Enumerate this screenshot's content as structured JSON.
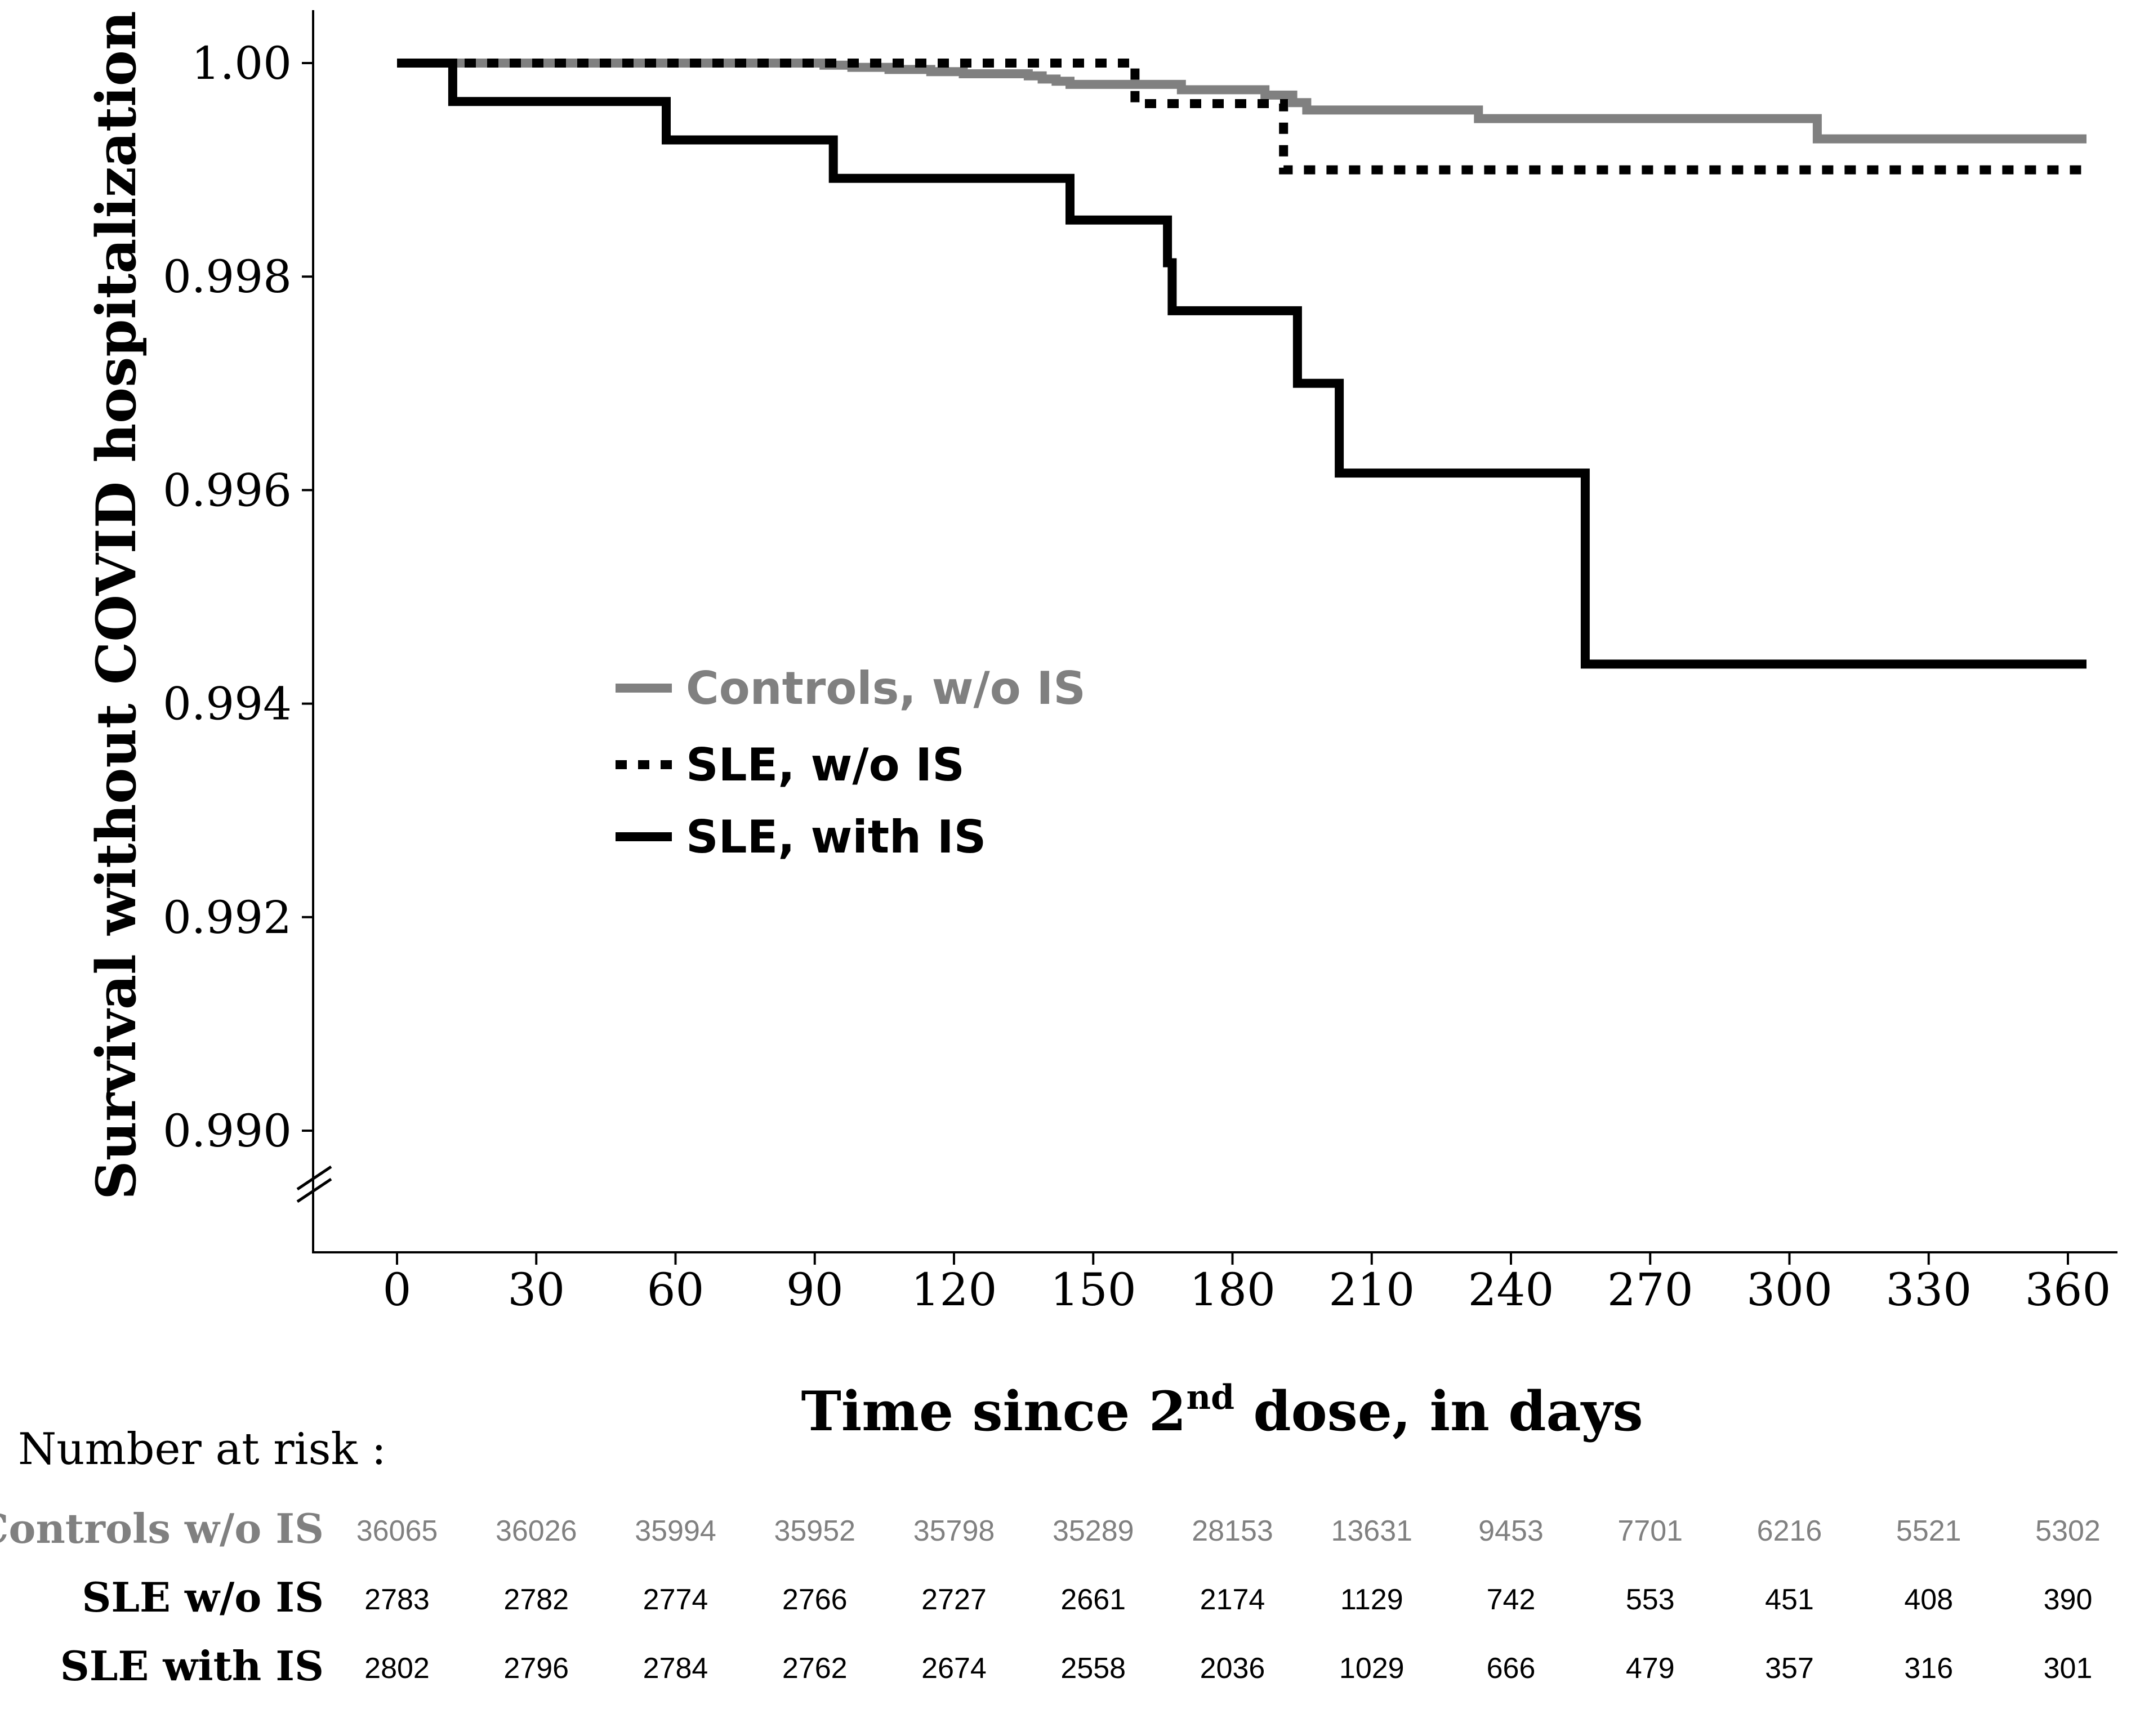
{
  "chart_data": {
    "type": "line",
    "subtype": "kaplan-meier step curves",
    "title": "",
    "xlabel_main": "Time since 2",
    "xlabel_sup": "nd",
    "xlabel_tail": " dose, in days",
    "ylabel": "Survival without COVID hospitalization",
    "xlim": [
      -15,
      380
    ],
    "ylim": [
      0.98885,
      1.0005
    ],
    "y_axis_break_below": 0.99,
    "x_ticks": [
      0,
      30,
      60,
      90,
      120,
      150,
      180,
      210,
      240,
      270,
      300,
      330,
      360
    ],
    "x_tick_labels": [
      "0",
      "30",
      "60",
      "90",
      "120",
      "150",
      "180",
      "210",
      "240",
      "270",
      "300",
      "330",
      "360"
    ],
    "y_ticks": [
      1.0,
      0.998,
      0.996,
      0.994,
      0.992,
      0.99
    ],
    "y_tick_labels": [
      "1.00",
      "0.998",
      "0.996",
      "0.994",
      "0.992",
      "0.990"
    ],
    "grid": false,
    "legend_position": "center-left",
    "series": [
      {
        "name": "Controls, w/o IS",
        "color": "#808080",
        "style": "solid",
        "steps": [
          [
            0,
            1.0
          ],
          [
            92,
            0.99998
          ],
          [
            98,
            0.99996
          ],
          [
            106,
            0.99994
          ],
          [
            115,
            0.99992
          ],
          [
            122,
            0.9999
          ],
          [
            136,
            0.99988
          ],
          [
            139,
            0.99985
          ],
          [
            142,
            0.99983
          ],
          [
            145,
            0.9998
          ],
          [
            169,
            0.99975
          ],
          [
            187,
            0.9997
          ],
          [
            193,
            0.99963
          ],
          [
            196,
            0.99956
          ],
          [
            233,
            0.99948
          ],
          [
            306,
            0.99929
          ],
          [
            364,
            0.99929
          ]
        ]
      },
      {
        "name": "SLE, w/o IS",
        "color": "#000000",
        "style": "dotted",
        "steps": [
          [
            0,
            1.0
          ],
          [
            159,
            0.99962
          ],
          [
            191,
            0.999
          ],
          [
            364,
            0.999
          ]
        ]
      },
      {
        "name": "SLE, with IS",
        "color": "#000000",
        "style": "solid",
        "steps": [
          [
            0,
            1.0
          ],
          [
            12,
            0.99964
          ],
          [
            58,
            0.99928
          ],
          [
            94,
            0.99892
          ],
          [
            145,
            0.99853
          ],
          [
            166,
            0.99813
          ],
          [
            167,
            0.99768
          ],
          [
            194,
            0.997
          ],
          [
            203,
            0.99616
          ],
          [
            256,
            0.99437
          ],
          [
            364,
            0.99437
          ]
        ]
      }
    ],
    "risk_table": {
      "heading": "Number at risk :",
      "times": [
        0,
        30,
        60,
        90,
        120,
        150,
        180,
        210,
        240,
        270,
        300,
        330,
        360
      ],
      "rows": [
        {
          "label": "Controls w/o IS",
          "color": "#808080",
          "values": [
            "36065",
            "36026",
            "35994",
            "35952",
            "35798",
            "35289",
            "28153",
            "13631",
            "9453",
            "7701",
            "6216",
            "5521",
            "5302"
          ]
        },
        {
          "label": "SLE w/o IS",
          "color": "#000000",
          "values": [
            "2783",
            "2782",
            "2774",
            "2766",
            "2727",
            "2661",
            "2174",
            "1129",
            "742",
            "553",
            "451",
            "408",
            "390"
          ]
        },
        {
          "label": "SLE with IS",
          "color": "#000000",
          "values": [
            "2802",
            "2796",
            "2784",
            "2762",
            "2674",
            "2558",
            "2036",
            "1029",
            "666",
            "479",
            "357",
            "316",
            "301"
          ]
        }
      ]
    }
  }
}
